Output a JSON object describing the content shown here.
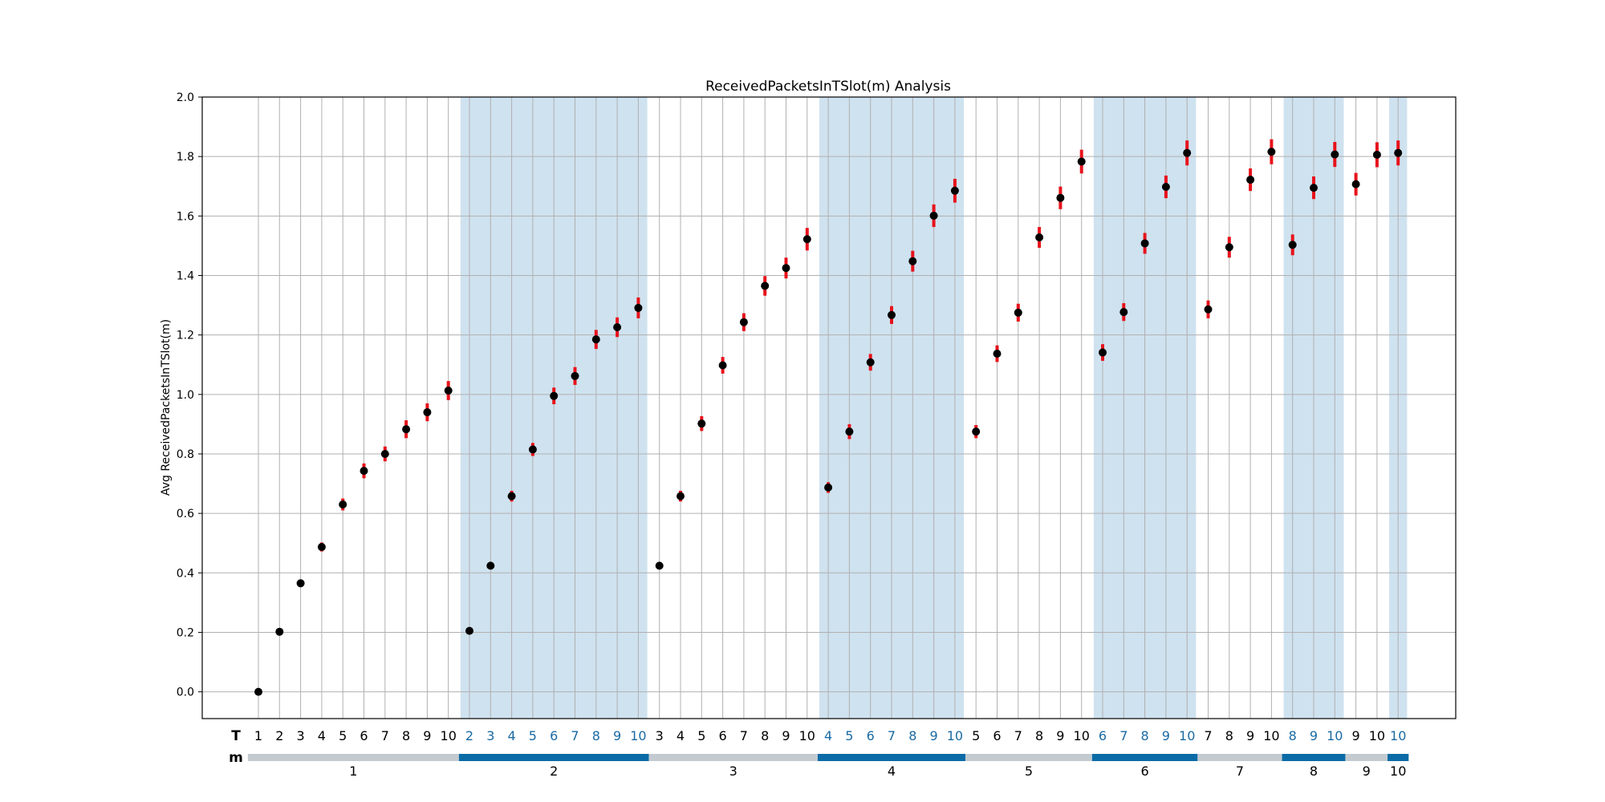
{
  "chart_data": {
    "type": "scatter",
    "title": "ReceivedPacketsInTSlot(m) Analysis",
    "ylabel": "Avg ReceivedPacketsInTSlot(m)",
    "ylim": [
      -0.09,
      2.0
    ],
    "yticks": [
      "0.0",
      "0.2",
      "0.4",
      "0.6",
      "0.8",
      "1.0",
      "1.2",
      "1.4",
      "1.6",
      "1.8",
      "2.0"
    ],
    "grid": true,
    "row_labels": {
      "T": "T",
      "m": "m"
    },
    "colors": {
      "point": "#000000",
      "error_bar": "#e8121b",
      "shade": "#cfe2ef",
      "group_bar_odd": "#c3cbd1",
      "group_bar_even": "#0b6ba6",
      "t_label_odd": "#000000",
      "t_label_even": "#1a6aa3",
      "grid": "#b0b0b0"
    },
    "groups": [
      {
        "m": "1",
        "T": [
          "1",
          "2",
          "3",
          "4",
          "5",
          "6",
          "7",
          "8",
          "9",
          "10"
        ],
        "values": [
          0.0,
          0.202,
          0.365,
          0.487,
          0.63,
          0.743,
          0.8,
          0.883,
          0.94,
          1.013
        ],
        "errors": [
          0.0,
          0.008,
          0.012,
          0.015,
          0.02,
          0.025,
          0.025,
          0.03,
          0.03,
          0.032
        ]
      },
      {
        "m": "2",
        "T": [
          "2",
          "3",
          "4",
          "5",
          "6",
          "7",
          "8",
          "9",
          "10"
        ],
        "values": [
          0.205,
          0.424,
          0.658,
          0.815,
          0.995,
          1.062,
          1.185,
          1.226,
          1.291
        ],
        "errors": [
          0.008,
          0.012,
          0.018,
          0.022,
          0.028,
          0.03,
          0.032,
          0.033,
          0.035
        ]
      },
      {
        "m": "3",
        "T": [
          "3",
          "4",
          "5",
          "6",
          "7",
          "8",
          "9",
          "10"
        ],
        "values": [
          0.424,
          0.658,
          0.902,
          1.098,
          1.243,
          1.365,
          1.425,
          1.522
        ],
        "errors": [
          0.012,
          0.018,
          0.025,
          0.028,
          0.03,
          0.033,
          0.035,
          0.038
        ]
      },
      {
        "m": "4",
        "T": [
          "4",
          "5",
          "6",
          "7",
          "8",
          "9",
          "10"
        ],
        "values": [
          0.687,
          0.875,
          1.108,
          1.267,
          1.448,
          1.601,
          1.685
        ],
        "errors": [
          0.018,
          0.025,
          0.028,
          0.03,
          0.035,
          0.038,
          0.04
        ]
      },
      {
        "m": "5",
        "T": [
          "5",
          "6",
          "7",
          "8",
          "9",
          "10"
        ],
        "values": [
          0.875,
          1.137,
          1.275,
          1.528,
          1.661,
          1.783
        ],
        "errors": [
          0.022,
          0.028,
          0.03,
          0.035,
          0.038,
          0.04
        ]
      },
      {
        "m": "6",
        "T": [
          "6",
          "7",
          "8",
          "9",
          "10"
        ],
        "values": [
          1.141,
          1.277,
          1.508,
          1.698,
          1.812
        ],
        "errors": [
          0.028,
          0.03,
          0.035,
          0.038,
          0.042
        ]
      },
      {
        "m": "7",
        "T": [
          "7",
          "8",
          "9",
          "10"
        ],
        "values": [
          1.286,
          1.495,
          1.722,
          1.816
        ],
        "errors": [
          0.03,
          0.035,
          0.038,
          0.042
        ]
      },
      {
        "m": "8",
        "T": [
          "8",
          "9",
          "10"
        ],
        "values": [
          1.503,
          1.695,
          1.807
        ],
        "errors": [
          0.035,
          0.038,
          0.042
        ]
      },
      {
        "m": "9",
        "T": [
          "9",
          "10"
        ],
        "values": [
          1.707,
          1.806
        ],
        "errors": [
          0.038,
          0.042
        ]
      },
      {
        "m": "10",
        "T": [
          "10"
        ],
        "values": [
          1.812
        ],
        "errors": [
          0.042
        ]
      }
    ]
  }
}
